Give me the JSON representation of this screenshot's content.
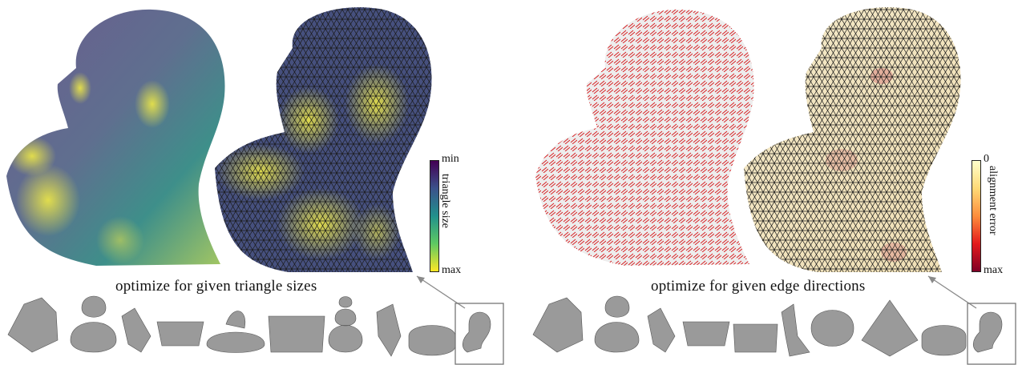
{
  "panels": [
    {
      "caption": "optimize for given triangle sizes",
      "colorbar": {
        "top_label": "min",
        "bottom_label": "max",
        "title": "triangle size",
        "colors": [
          "#440154",
          "#3b528b",
          "#21918c",
          "#5ec962",
          "#fde725"
        ]
      },
      "thumbnail_count": 10
    },
    {
      "caption": "optimize for given edge directions",
      "colorbar": {
        "top_label": "0",
        "bottom_label": "max",
        "title": "alignment error",
        "colors": [
          "#ffffcc",
          "#fed976",
          "#fd8d3c",
          "#e31a1c",
          "#800026"
        ]
      },
      "thumbnail_count": 10
    }
  ],
  "colors": {
    "field_red": "#d7191c",
    "mesh_dark": "#1a1a1a",
    "thumb_gray": "#9a9a9a"
  }
}
